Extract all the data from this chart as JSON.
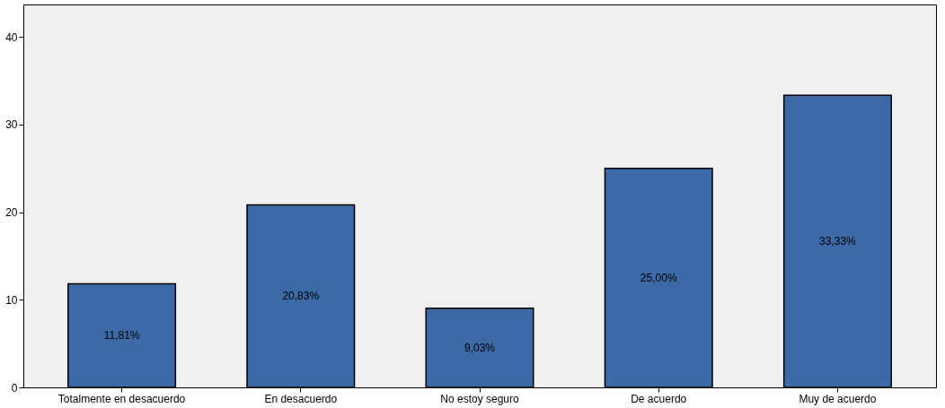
{
  "chart_data": {
    "type": "bar",
    "categories": [
      "Totalmente en desacuerdo",
      "En desacuerdo",
      "No estoy seguro",
      "De acuerdo",
      "Muy de acuerdo"
    ],
    "values": [
      11.81,
      20.83,
      9.03,
      25.0,
      33.33
    ],
    "value_labels": [
      "11,81%",
      "20,83%",
      "9,03%",
      "25,00%",
      "33,33%"
    ],
    "color": "#3b6aa6",
    "ylim": [
      0,
      43.7
    ],
    "yticks": [
      0,
      10,
      20,
      30,
      40
    ],
    "grid": false
  }
}
